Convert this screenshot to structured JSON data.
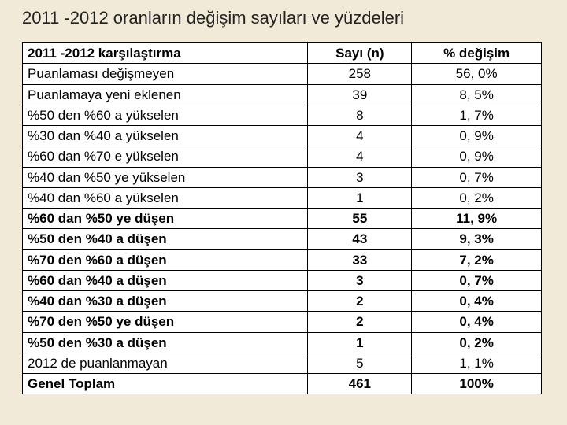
{
  "title": "2011 -2012 oranların değişim sayıları ve yüzdeleri",
  "table": {
    "headers": [
      "2011 -2012 karşılaştırma",
      "Sayı (n)",
      "% değişim"
    ],
    "rows": [
      {
        "cells": [
          "Puanlaması değişmeyen",
          "258",
          "56, 0%"
        ],
        "bold": false
      },
      {
        "cells": [
          "Puanlamaya yeni eklenen",
          "39",
          "8, 5%"
        ],
        "bold": false
      },
      {
        "cells": [
          "%50 den %60 a yükselen",
          "8",
          "1, 7%"
        ],
        "bold": false
      },
      {
        "cells": [
          "%30 dan %40 a yükselen",
          "4",
          "0, 9%"
        ],
        "bold": false
      },
      {
        "cells": [
          "%60 dan %70 e yükselen",
          "4",
          "0, 9%"
        ],
        "bold": false
      },
      {
        "cells": [
          "%40 dan %50 ye yükselen",
          "3",
          "0, 7%"
        ],
        "bold": false
      },
      {
        "cells": [
          "%40 dan %60 a yükselen",
          "1",
          "0, 2%"
        ],
        "bold": false
      },
      {
        "cells": [
          "%60 dan %50 ye düşen",
          "55",
          "11, 9%"
        ],
        "bold": true
      },
      {
        "cells": [
          "%50 den %40 a düşen",
          "43",
          "9, 3%"
        ],
        "bold": true
      },
      {
        "cells": [
          "%70 den %60 a düşen",
          "33",
          "7, 2%"
        ],
        "bold": true
      },
      {
        "cells": [
          "%60 dan %40 a düşen",
          "3",
          "0, 7%"
        ],
        "bold": true
      },
      {
        "cells": [
          "%40 dan %30 a düşen",
          "2",
          "0, 4%"
        ],
        "bold": true
      },
      {
        "cells": [
          "%70 den %50 ye düşen",
          "2",
          "0, 4%"
        ],
        "bold": true
      },
      {
        "cells": [
          "%50 den %30 a düşen",
          "1",
          "0, 2%"
        ],
        "bold": true
      },
      {
        "cells": [
          "2012 de puanlanmayan",
          "5",
          "1, 1%"
        ],
        "bold": false
      },
      {
        "cells": [
          "Genel Toplam",
          "461",
          "100%"
        ],
        "bold": true
      }
    ],
    "background_color": "#ffffff",
    "border_color": "#000000",
    "font_size": 17,
    "col_widths_pct": [
      55,
      20,
      25
    ]
  },
  "slide_bg": "#f2ead8"
}
